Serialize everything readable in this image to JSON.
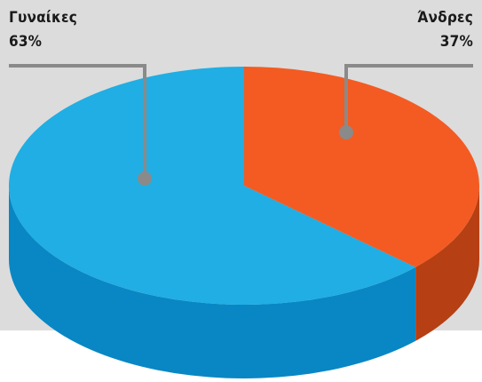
{
  "colors": {
    "background": "#ffffff",
    "panel": "#dcdcdc",
    "leader": "#8a8a8a"
  },
  "chart_data": {
    "type": "pie",
    "style": "3d",
    "series": [
      {
        "name": "Γυναίκες",
        "value_label": "63%",
        "value": 63,
        "color": "#20aee4",
        "side_color": "#0887c4"
      },
      {
        "name": "Άνδρες",
        "value_label": "37%",
        "value": 37,
        "color": "#f35b22",
        "side_color": "#b63f13"
      }
    ]
  }
}
